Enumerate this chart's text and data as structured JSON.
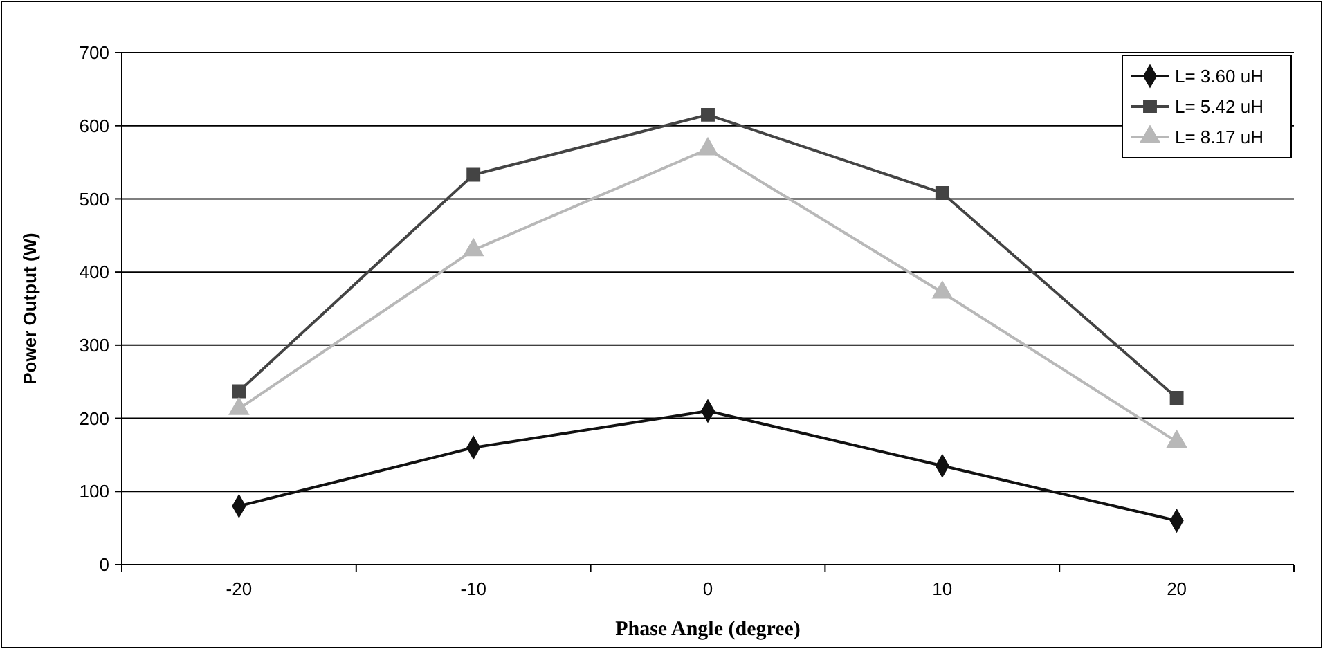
{
  "chart_data": {
    "type": "line",
    "xlabel": "Phase Angle (degree)",
    "ylabel": "Power Output (W)",
    "categories": [
      "-20",
      "-10",
      "0",
      "10",
      "20"
    ],
    "series": [
      {
        "name": "L= 3.60 uH",
        "color": "#111111",
        "marker": "diamond",
        "values": [
          80,
          160,
          210,
          135,
          60
        ]
      },
      {
        "name": "L= 5.42 uH",
        "color": "#444444",
        "marker": "square",
        "values": [
          237,
          533,
          615,
          508,
          228
        ]
      },
      {
        "name": "L= 8.17 uH",
        "color": "#b8b8b8",
        "marker": "triangle",
        "values": [
          213,
          430,
          568,
          372,
          168
        ]
      }
    ],
    "ylim": [
      0,
      700
    ],
    "yticks": [
      0,
      100,
      200,
      300,
      400,
      500,
      600,
      700
    ],
    "grid": "y",
    "legend": "top right"
  }
}
